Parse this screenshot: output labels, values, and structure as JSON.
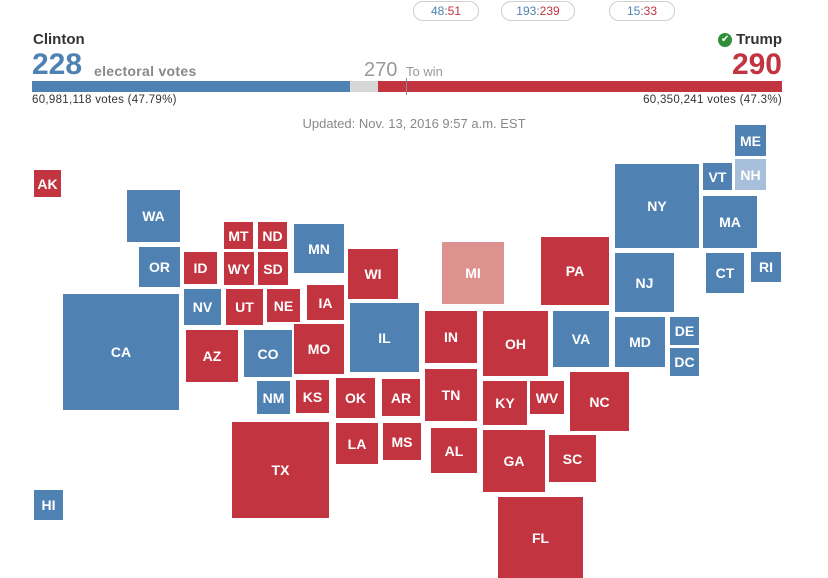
{
  "summary_pills": [
    {
      "name": "pill-senate",
      "dem": "48",
      "rep": "51"
    },
    {
      "name": "pill-house",
      "dem": "193",
      "rep": "239"
    },
    {
      "name": "pill-governors",
      "dem": "15",
      "rep": "33"
    }
  ],
  "pill_separator": ":",
  "header": {
    "dem": {
      "name": "Clinton",
      "electoral": "228",
      "popular": "60,981,118 votes (47.79%)"
    },
    "rep": {
      "name": "Trump",
      "electoral": "290",
      "popular": "60,350,241 votes (47.3%)",
      "winner_mark": "✔"
    },
    "electoral_label": "electoral votes",
    "to_win_number": "270",
    "to_win_label": "To win",
    "updated": "Updated: Nov. 13, 2016 9:57 a.m. EST"
  },
  "colors": {
    "dem": "#4f81b3",
    "rep": "#c2343f",
    "lean_dem": "#a8bfdc",
    "lean_rep": "#dc928f",
    "undecided": "#d7d7d7"
  },
  "chart_data": {
    "type": "cartogram",
    "total_electoral": 538,
    "to_win": 270,
    "dem_electoral": 228,
    "rep_electoral": 290,
    "undecided_electoral": 20,
    "states": [
      {
        "abbr": "AK",
        "winner": "R"
      },
      {
        "abbr": "HI",
        "winner": "D"
      },
      {
        "abbr": "WA",
        "winner": "D"
      },
      {
        "abbr": "OR",
        "winner": "D"
      },
      {
        "abbr": "CA",
        "winner": "D"
      },
      {
        "abbr": "ID",
        "winner": "R"
      },
      {
        "abbr": "NV",
        "winner": "D"
      },
      {
        "abbr": "MT",
        "winner": "R"
      },
      {
        "abbr": "WY",
        "winner": "R"
      },
      {
        "abbr": "UT",
        "winner": "R"
      },
      {
        "abbr": "AZ",
        "winner": "R"
      },
      {
        "abbr": "ND",
        "winner": "R"
      },
      {
        "abbr": "SD",
        "winner": "R"
      },
      {
        "abbr": "NE",
        "winner": "R"
      },
      {
        "abbr": "CO",
        "winner": "D"
      },
      {
        "abbr": "NM",
        "winner": "D"
      },
      {
        "abbr": "KS",
        "winner": "R"
      },
      {
        "abbr": "OK",
        "winner": "R"
      },
      {
        "abbr": "TX",
        "winner": "R"
      },
      {
        "abbr": "MN",
        "winner": "D"
      },
      {
        "abbr": "IA",
        "winner": "R"
      },
      {
        "abbr": "MO",
        "winner": "R"
      },
      {
        "abbr": "AR",
        "winner": "R"
      },
      {
        "abbr": "LA",
        "winner": "R"
      },
      {
        "abbr": "MS",
        "winner": "R"
      },
      {
        "abbr": "WI",
        "winner": "R"
      },
      {
        "abbr": "IL",
        "winner": "D"
      },
      {
        "abbr": "MI",
        "winner": "LR"
      },
      {
        "abbr": "IN",
        "winner": "R"
      },
      {
        "abbr": "TN",
        "winner": "R"
      },
      {
        "abbr": "AL",
        "winner": "R"
      },
      {
        "abbr": "OH",
        "winner": "R"
      },
      {
        "abbr": "KY",
        "winner": "R"
      },
      {
        "abbr": "WV",
        "winner": "R"
      },
      {
        "abbr": "GA",
        "winner": "R"
      },
      {
        "abbr": "FL",
        "winner": "R"
      },
      {
        "abbr": "PA",
        "winner": "R"
      },
      {
        "abbr": "VA",
        "winner": "D"
      },
      {
        "abbr": "NC",
        "winner": "R"
      },
      {
        "abbr": "SC",
        "winner": "R"
      },
      {
        "abbr": "NY",
        "winner": "D"
      },
      {
        "abbr": "NJ",
        "winner": "D"
      },
      {
        "abbr": "MD",
        "winner": "D"
      },
      {
        "abbr": "DE",
        "winner": "D"
      },
      {
        "abbr": "DC",
        "winner": "D"
      },
      {
        "abbr": "VT",
        "winner": "D"
      },
      {
        "abbr": "NH",
        "winner": "LD"
      },
      {
        "abbr": "ME",
        "winner": "D"
      },
      {
        "abbr": "MA",
        "winner": "D"
      },
      {
        "abbr": "CT",
        "winner": "D"
      },
      {
        "abbr": "RI",
        "winner": "D"
      }
    ]
  }
}
